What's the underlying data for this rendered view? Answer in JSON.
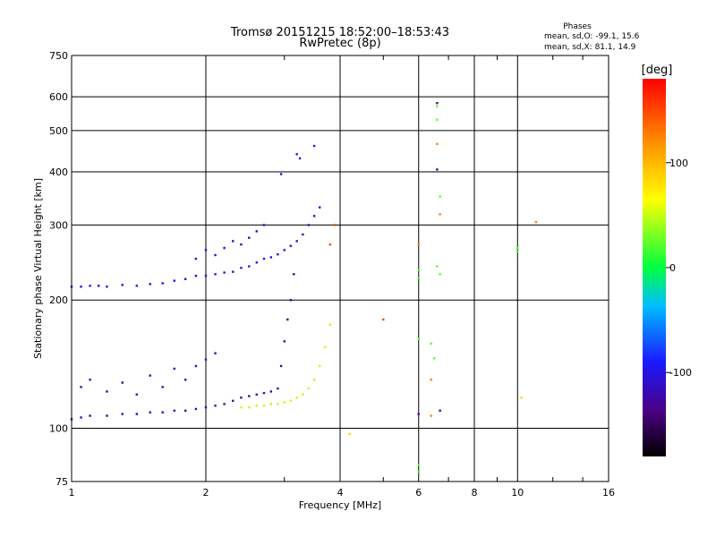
{
  "chart_data": {
    "type": "scatter",
    "title": "Tromsø 20151215 18:52:00–18:53:43",
    "subtitle": "RwPretec (8p)",
    "xlabel": "Frequency [MHz]",
    "ylabel": "Stationary phase Virtual Height [km]",
    "x_scale": "log",
    "y_scale": "log",
    "xlim": [
      1,
      16
    ],
    "ylim": [
      75,
      750
    ],
    "x_ticks": [
      1,
      2,
      4,
      6,
      8,
      10,
      16
    ],
    "y_ticks": [
      75,
      100,
      200,
      300,
      400,
      500,
      600,
      750
    ],
    "grid": true,
    "colorbar": {
      "label": "[deg]",
      "ticks": [
        100,
        0,
        -100
      ],
      "range": [
        -180,
        180
      ]
    },
    "phase_stats": {
      "heading": "Phases",
      "o_line": "mean, sd,O: -99.1, 15.6",
      "x_line": "mean, sd,X: 81.1, 14.9"
    },
    "traces": [
      {
        "phase": -125,
        "x": [
          1.0,
          1.05,
          1.1,
          1.2,
          1.3,
          1.4,
          1.5,
          1.6,
          1.7,
          1.8,
          1.9,
          2.0,
          2.1,
          2.2,
          2.3,
          2.4,
          2.5,
          2.6,
          2.7,
          2.8,
          2.9
        ],
        "y": [
          105,
          106,
          107,
          107,
          108,
          108,
          109,
          109,
          110,
          110,
          111,
          112,
          113,
          114,
          116,
          118,
          119,
          120,
          121,
          122,
          124
        ]
      },
      {
        "phase": 45,
        "x": [
          2.4,
          2.5,
          2.6,
          2.7,
          2.8,
          2.9,
          3.0,
          3.1,
          3.2,
          3.3,
          3.4,
          3.5,
          3.6,
          3.7,
          3.8
        ],
        "y": [
          112,
          112,
          113,
          113,
          114,
          114,
          115,
          116,
          118,
          120,
          124,
          130,
          140,
          155,
          175
        ]
      },
      {
        "phase": -110,
        "x": [
          1.0,
          1.05,
          1.1,
          1.15,
          1.2,
          1.3,
          1.4,
          1.5,
          1.6,
          1.7,
          1.8
        ],
        "y": [
          215,
          215,
          216,
          216,
          215,
          217,
          216,
          218,
          219,
          222,
          224
        ]
      },
      {
        "phase": -110,
        "x": [
          1.9,
          2.0,
          2.1,
          2.2,
          2.3,
          2.4,
          2.5,
          2.6,
          2.7,
          2.8,
          2.9,
          3.0,
          3.1,
          3.2,
          3.3,
          3.4,
          3.5,
          3.6
        ],
        "y": [
          228,
          228,
          230,
          232,
          233,
          238,
          240,
          245,
          250,
          252,
          256,
          262,
          268,
          275,
          285,
          300,
          315,
          330
        ]
      },
      {
        "phase": -135,
        "x": [
          2.95,
          3.0,
          3.05,
          3.1,
          3.15
        ],
        "y": [
          140,
          160,
          180,
          200,
          230
        ]
      },
      {
        "phase": -120,
        "x": [
          1.05,
          1.1,
          1.2,
          1.3,
          1.4,
          1.5,
          1.6,
          1.7,
          1.8,
          1.9,
          2.0,
          2.1
        ],
        "y": [
          125,
          130,
          122,
          128,
          120,
          133,
          125,
          138,
          130,
          140,
          145,
          150
        ]
      },
      {
        "phase": -115,
        "x": [
          1.9,
          2.0,
          2.1,
          2.2,
          2.3,
          2.4,
          2.5,
          2.6,
          2.7
        ],
        "y": [
          250,
          262,
          255,
          265,
          275,
          270,
          280,
          290,
          300
        ]
      },
      {
        "phase": -105,
        "x": [
          3.2,
          3.25,
          3.5
        ],
        "y": [
          440,
          430,
          460
        ]
      },
      {
        "phase": -105,
        "x": [
          2.95
        ],
        "y": [
          395
        ]
      },
      {
        "phase": 20,
        "x": [
          6.6,
          6.6,
          6.7,
          6.6,
          6.7,
          6.0,
          6.0
        ],
        "y": [
          570,
          530,
          350,
          240,
          230,
          235,
          225
        ]
      },
      {
        "phase": 120,
        "x": [
          6.6,
          6.7,
          6.0,
          6.4,
          11.0,
          6.4
        ],
        "y": [
          465,
          318,
          270,
          107,
          305,
          130
        ]
      },
      {
        "phase": -130,
        "x": [
          6.6,
          6.6,
          6.7,
          6.0
        ],
        "y": [
          405,
          580,
          110,
          108
        ]
      },
      {
        "phase": 20,
        "x": [
          6.0,
          6.0,
          6.4,
          10.0,
          10.0,
          6.5,
          6.0
        ],
        "y": [
          162,
          82,
          158,
          265,
          260,
          146,
          79
        ]
      },
      {
        "phase": 80,
        "x": [
          4.2,
          10.2
        ],
        "y": [
          97,
          118
        ]
      },
      {
        "phase": 150,
        "x": [
          3.9,
          5.0,
          3.8
        ],
        "y": [
          300,
          180,
          270
        ]
      }
    ]
  }
}
